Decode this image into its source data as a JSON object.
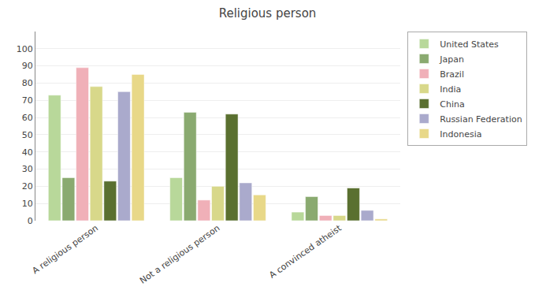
{
  "chart_data": {
    "type": "bar",
    "title": "Religious person",
    "categories": [
      "A religious person",
      "Not a religious person",
      "A convinced atheist"
    ],
    "series": [
      {
        "name": "United States",
        "color": "#b8d89a",
        "values": [
          73,
          25,
          5
        ]
      },
      {
        "name": "Japan",
        "color": "#8aaa70",
        "values": [
          25,
          63,
          14
        ]
      },
      {
        "name": "Brazil",
        "color": "#f0b0b8",
        "values": [
          89,
          12,
          3
        ]
      },
      {
        "name": "India",
        "color": "#d8d88a",
        "values": [
          78,
          20,
          3
        ]
      },
      {
        "name": "China",
        "color": "#5a7030",
        "values": [
          23,
          62,
          19
        ]
      },
      {
        "name": "Russian Federation",
        "color": "#aaaacc",
        "values": [
          75,
          22,
          6
        ]
      },
      {
        "name": "Indonesia",
        "color": "#e8d888",
        "values": [
          85,
          15,
          1
        ]
      }
    ],
    "ylim": [
      0,
      110
    ],
    "yticks": [
      0,
      10,
      20,
      30,
      40,
      50,
      60,
      70,
      80,
      90,
      100
    ],
    "grid": true,
    "legend": "right"
  }
}
